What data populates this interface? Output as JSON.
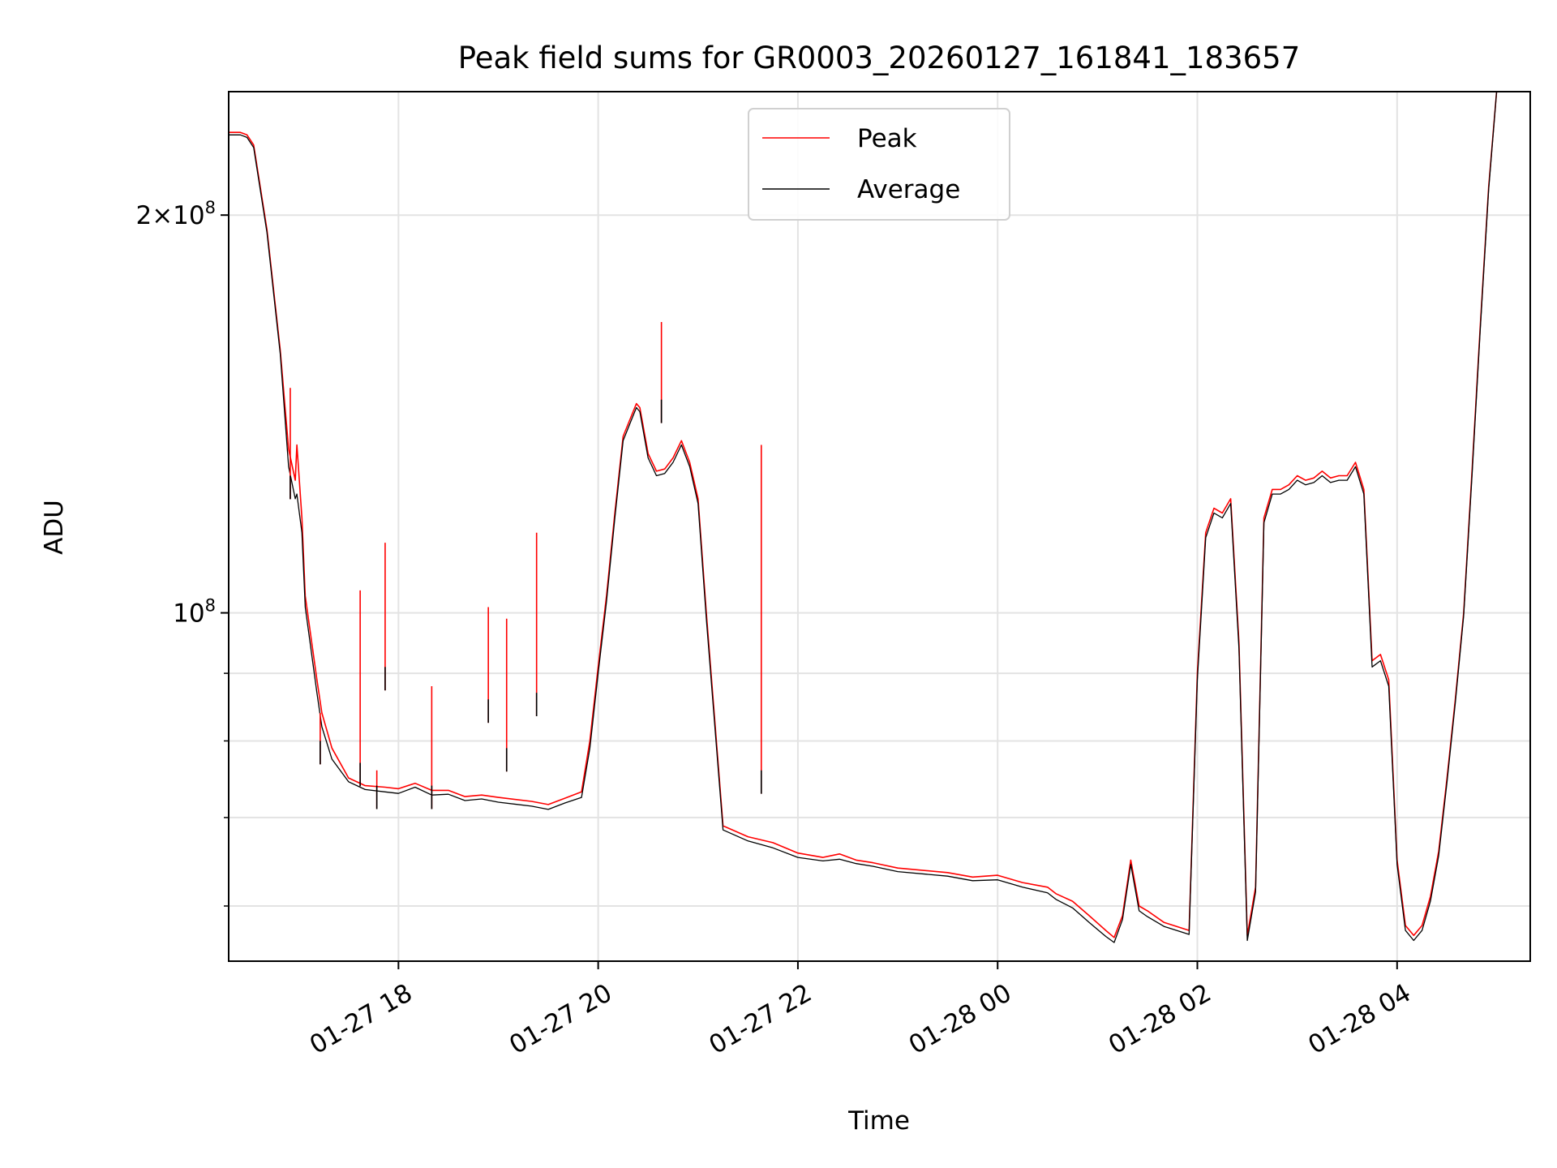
{
  "chart_data": {
    "type": "line",
    "title": "Peak field sums for GR0003_20260127_161841_183657",
    "xlabel": "Time",
    "ylabel": "ADU",
    "yscale": "log",
    "xlim": [
      "2026-01-27 16:18",
      "2026-01-28 05:20"
    ],
    "ylim": [
      54500000,
      248000000
    ],
    "grid": true,
    "legend_position": "upper center",
    "x_ticks": [
      {
        "time": "2026-01-27 18:00",
        "label": "01-27 18"
      },
      {
        "time": "2026-01-27 20:00",
        "label": "01-27 20"
      },
      {
        "time": "2026-01-27 22:00",
        "label": "01-27 22"
      },
      {
        "time": "2026-01-28 00:00",
        "label": "01-28 00"
      },
      {
        "time": "2026-01-28 02:00",
        "label": "01-28 02"
      },
      {
        "time": "2026-01-28 04:00",
        "label": "01-28 04"
      }
    ],
    "y_ticks": [
      {
        "value": 100000000,
        "base": "10",
        "exp": "8"
      },
      {
        "value": 200000000,
        "mant": "2",
        "times": "×",
        "base": "10",
        "exp": "8"
      }
    ],
    "y_minor_ticks": [
      60000000,
      70000000,
      80000000,
      90000000
    ],
    "series": [
      {
        "name": "Peak",
        "color": "#ff0000",
        "x": [
          "2026-01-27 16:18",
          "2026-01-27 16:25",
          "2026-01-27 16:29",
          "2026-01-27 16:33",
          "2026-01-27 16:41",
          "2026-01-27 16:49",
          "2026-01-27 16:54",
          "2026-01-27 16:58",
          "2026-01-27 16:59",
          "2026-01-27 17:02",
          "2026-01-27 17:04",
          "2026-01-27 17:11",
          "2026-01-27 17:14",
          "2026-01-27 17:20",
          "2026-01-27 17:30",
          "2026-01-27 17:40",
          "2026-01-27 17:52",
          "2026-01-27 18:00",
          "2026-01-27 18:10",
          "2026-01-27 18:20",
          "2026-01-27 18:30",
          "2026-01-27 18:40",
          "2026-01-27 18:50",
          "2026-01-27 19:00",
          "2026-01-27 19:20",
          "2026-01-27 19:30",
          "2026-01-27 19:40",
          "2026-01-27 19:50",
          "2026-01-27 19:55",
          "2026-01-27 20:00",
          "2026-01-27 20:05",
          "2026-01-27 20:10",
          "2026-01-27 20:15",
          "2026-01-27 20:20",
          "2026-01-27 20:23",
          "2026-01-27 20:25",
          "2026-01-27 20:30",
          "2026-01-27 20:35",
          "2026-01-27 20:40",
          "2026-01-27 20:45",
          "2026-01-27 20:50",
          "2026-01-27 20:55",
          "2026-01-27 21:00",
          "2026-01-27 21:05",
          "2026-01-27 21:15",
          "2026-01-27 21:30",
          "2026-01-27 21:45",
          "2026-01-27 22:00",
          "2026-01-27 22:15",
          "2026-01-27 22:25",
          "2026-01-27 22:35",
          "2026-01-27 22:45",
          "2026-01-27 23:00",
          "2026-01-27 23:30",
          "2026-01-27 23:45",
          "2026-01-28 00:00",
          "2026-01-28 00:15",
          "2026-01-28 00:30",
          "2026-01-28 00:35",
          "2026-01-28 00:45",
          "2026-01-28 00:55",
          "2026-01-28 01:05",
          "2026-01-28 01:10",
          "2026-01-28 01:15",
          "2026-01-28 01:20",
          "2026-01-28 01:25",
          "2026-01-28 01:30",
          "2026-01-28 01:40",
          "2026-01-28 01:55",
          "2026-01-28 02:00",
          "2026-01-28 02:05",
          "2026-01-28 02:10",
          "2026-01-28 02:15",
          "2026-01-28 02:20",
          "2026-01-28 02:25",
          "2026-01-28 02:30",
          "2026-01-28 02:35",
          "2026-01-28 02:40",
          "2026-01-28 02:45",
          "2026-01-28 02:50",
          "2026-01-28 02:55",
          "2026-01-28 03:00",
          "2026-01-28 03:05",
          "2026-01-28 03:10",
          "2026-01-28 03:15",
          "2026-01-28 03:20",
          "2026-01-28 03:25",
          "2026-01-28 03:30",
          "2026-01-28 03:35",
          "2026-01-28 03:40",
          "2026-01-28 03:45",
          "2026-01-28 03:50",
          "2026-01-28 03:55",
          "2026-01-28 04:00",
          "2026-01-28 04:05",
          "2026-01-28 04:10",
          "2026-01-28 04:15",
          "2026-01-28 04:20",
          "2026-01-28 04:25",
          "2026-01-28 04:30",
          "2026-01-28 04:35",
          "2026-01-28 04:40",
          "2026-01-28 04:45",
          "2026-01-28 04:50",
          "2026-01-28 04:55",
          "2026-01-28 05:00",
          "2026-01-28 05:05",
          "2026-01-28 05:10",
          "2026-01-28 05:15",
          "2026-01-28 05:20"
        ],
        "y": [
          231000000,
          231000000,
          230000000,
          226000000,
          195000000,
          158000000,
          133000000,
          126000000,
          134000000,
          118000000,
          103000000,
          89000000,
          84000000,
          79000000,
          75000000,
          74000000,
          73800000,
          73600000,
          74300000,
          73400000,
          73400000,
          72600000,
          72800000,
          72500000,
          72000000,
          71600000,
          72400000,
          73200000,
          80000000,
          91000000,
          103000000,
          119000000,
          136000000,
          141000000,
          144000000,
          143000000,
          132000000,
          128000000,
          128500000,
          131000000,
          135000000,
          130000000,
          122000000,
          100000000,
          69000000,
          67700000,
          67000000,
          65800000,
          65300000,
          65700000,
          65000000,
          64700000,
          64100000,
          63600000,
          63100000,
          63300000,
          62500000,
          62000000,
          61300000,
          60500000,
          59000000,
          57500000,
          56800000,
          59000000,
          65000000,
          60000000,
          59500000,
          58300000,
          57500000,
          90000000,
          115000000,
          120000000,
          119000000,
          122000000,
          95000000,
          57000000,
          62000000,
          118000000,
          124000000,
          124000000,
          125000000,
          127000000,
          126000000,
          126500000,
          128000000,
          126500000,
          127000000,
          127000000,
          130000000,
          124000000,
          92000000,
          93000000,
          89000000,
          65000000,
          58000000,
          57000000,
          58000000,
          61000000,
          66000000,
          75000000,
          86000000,
          100000000,
          128000000,
          165000000,
          210000000,
          250000000,
          250000000,
          250000000,
          250000000,
          250000000
        ]
      },
      {
        "name": "Average",
        "color": "#000000",
        "x": [
          "2026-01-27 16:18",
          "2026-01-27 16:25",
          "2026-01-27 16:29",
          "2026-01-27 16:33",
          "2026-01-27 16:41",
          "2026-01-27 16:49",
          "2026-01-27 16:54",
          "2026-01-27 16:58",
          "2026-01-27 16:59",
          "2026-01-27 17:02",
          "2026-01-27 17:04",
          "2026-01-27 17:11",
          "2026-01-27 17:14",
          "2026-01-27 17:20",
          "2026-01-27 17:30",
          "2026-01-27 17:40",
          "2026-01-27 17:52",
          "2026-01-27 18:00",
          "2026-01-27 18:10",
          "2026-01-27 18:20",
          "2026-01-27 18:30",
          "2026-01-27 18:40",
          "2026-01-27 18:50",
          "2026-01-27 19:00",
          "2026-01-27 19:20",
          "2026-01-27 19:30",
          "2026-01-27 19:40",
          "2026-01-27 19:50",
          "2026-01-27 19:55",
          "2026-01-27 20:00",
          "2026-01-27 20:05",
          "2026-01-27 20:10",
          "2026-01-27 20:15",
          "2026-01-27 20:20",
          "2026-01-27 20:23",
          "2026-01-27 20:25",
          "2026-01-27 20:30",
          "2026-01-27 20:35",
          "2026-01-27 20:40",
          "2026-01-27 20:45",
          "2026-01-27 20:50",
          "2026-01-27 20:55",
          "2026-01-27 21:00",
          "2026-01-27 21:05",
          "2026-01-27 21:15",
          "2026-01-27 21:30",
          "2026-01-27 21:45",
          "2026-01-27 22:00",
          "2026-01-27 22:15",
          "2026-01-27 22:25",
          "2026-01-27 22:35",
          "2026-01-27 22:45",
          "2026-01-27 23:00",
          "2026-01-27 23:30",
          "2026-01-27 23:45",
          "2026-01-28 00:00",
          "2026-01-28 00:15",
          "2026-01-28 00:30",
          "2026-01-28 00:35",
          "2026-01-28 00:45",
          "2026-01-28 00:55",
          "2026-01-28 01:05",
          "2026-01-28 01:10",
          "2026-01-28 01:15",
          "2026-01-28 01:20",
          "2026-01-28 01:25",
          "2026-01-28 01:30",
          "2026-01-28 01:40",
          "2026-01-28 01:55",
          "2026-01-28 02:00",
          "2026-01-28 02:05",
          "2026-01-28 02:10",
          "2026-01-28 02:15",
          "2026-01-28 02:20",
          "2026-01-28 02:25",
          "2026-01-28 02:30",
          "2026-01-28 02:35",
          "2026-01-28 02:40",
          "2026-01-28 02:45",
          "2026-01-28 02:50",
          "2026-01-28 02:55",
          "2026-01-28 03:00",
          "2026-01-28 03:05",
          "2026-01-28 03:10",
          "2026-01-28 03:15",
          "2026-01-28 03:20",
          "2026-01-28 03:25",
          "2026-01-28 03:30",
          "2026-01-28 03:35",
          "2026-01-28 03:40",
          "2026-01-28 03:45",
          "2026-01-28 03:50",
          "2026-01-28 03:55",
          "2026-01-28 04:00",
          "2026-01-28 04:05",
          "2026-01-28 04:10",
          "2026-01-28 04:15",
          "2026-01-28 04:20",
          "2026-01-28 04:25",
          "2026-01-28 04:30",
          "2026-01-28 04:35",
          "2026-01-28 04:40",
          "2026-01-28 04:45",
          "2026-01-28 04:50",
          "2026-01-28 04:55",
          "2026-01-28 05:00",
          "2026-01-28 05:05",
          "2026-01-28 05:10",
          "2026-01-28 05:15",
          "2026-01-28 05:20"
        ],
        "y": [
          230000000,
          230000000,
          229000000,
          225000000,
          194000000,
          157000000,
          129000000,
          122000000,
          123000000,
          115000000,
          101000000,
          87000000,
          82000000,
          77500000,
          74500000,
          73500000,
          73200000,
          73000000,
          73800000,
          72800000,
          72900000,
          72100000,
          72300000,
          71900000,
          71400000,
          71000000,
          71800000,
          72500000,
          79000000,
          90000000,
          102000000,
          118000000,
          135000000,
          140000000,
          143000000,
          142000000,
          131000000,
          127000000,
          127500000,
          130000000,
          134000000,
          129000000,
          121000000,
          99000000,
          68500000,
          67200000,
          66400000,
          65300000,
          64900000,
          65100000,
          64600000,
          64300000,
          63700000,
          63200000,
          62700000,
          62800000,
          62000000,
          61400000,
          60700000,
          59800000,
          58300000,
          56900000,
          56300000,
          58600000,
          64500000,
          59500000,
          58900000,
          57900000,
          57100000,
          89000000,
          114000000,
          119000000,
          118000000,
          121000000,
          94000000,
          56500000,
          61500000,
          117000000,
          123000000,
          123000000,
          124000000,
          126000000,
          125000000,
          125500000,
          127000000,
          125500000,
          126000000,
          126000000,
          129000000,
          123000000,
          91000000,
          92000000,
          88000000,
          64500000,
          57500000,
          56500000,
          57500000,
          60500000,
          65500000,
          74500000,
          85500000,
          99500000,
          127000000,
          164000000,
          209000000,
          250000000,
          250000000,
          250000000,
          250000000,
          250000000
        ]
      }
    ],
    "peak_spikes": [
      {
        "time": "2026-01-27 16:55",
        "peak": 148000000,
        "avg": 127000000
      },
      {
        "time": "2026-01-27 17:13",
        "peak": 84000000,
        "avg": 80000000
      },
      {
        "time": "2026-01-27 17:37",
        "peak": 104000000,
        "avg": 77000000
      },
      {
        "time": "2026-01-27 17:47",
        "peak": 76000000,
        "avg": 74000000
      },
      {
        "time": "2026-01-27 17:52",
        "peak": 113000000,
        "avg": 91000000
      },
      {
        "time": "2026-01-27 18:20",
        "peak": 88000000,
        "avg": 74000000
      },
      {
        "time": "2026-01-27 18:54",
        "peak": 101000000,
        "avg": 86000000
      },
      {
        "time": "2026-01-27 19:05",
        "peak": 99000000,
        "avg": 79000000
      },
      {
        "time": "2026-01-27 19:23",
        "peak": 115000000,
        "avg": 87000000
      },
      {
        "time": "2026-01-27 20:38",
        "peak": 166000000,
        "avg": 145000000
      },
      {
        "time": "2026-01-27 21:38",
        "peak": 134000000,
        "avg": 76000000
      }
    ]
  }
}
